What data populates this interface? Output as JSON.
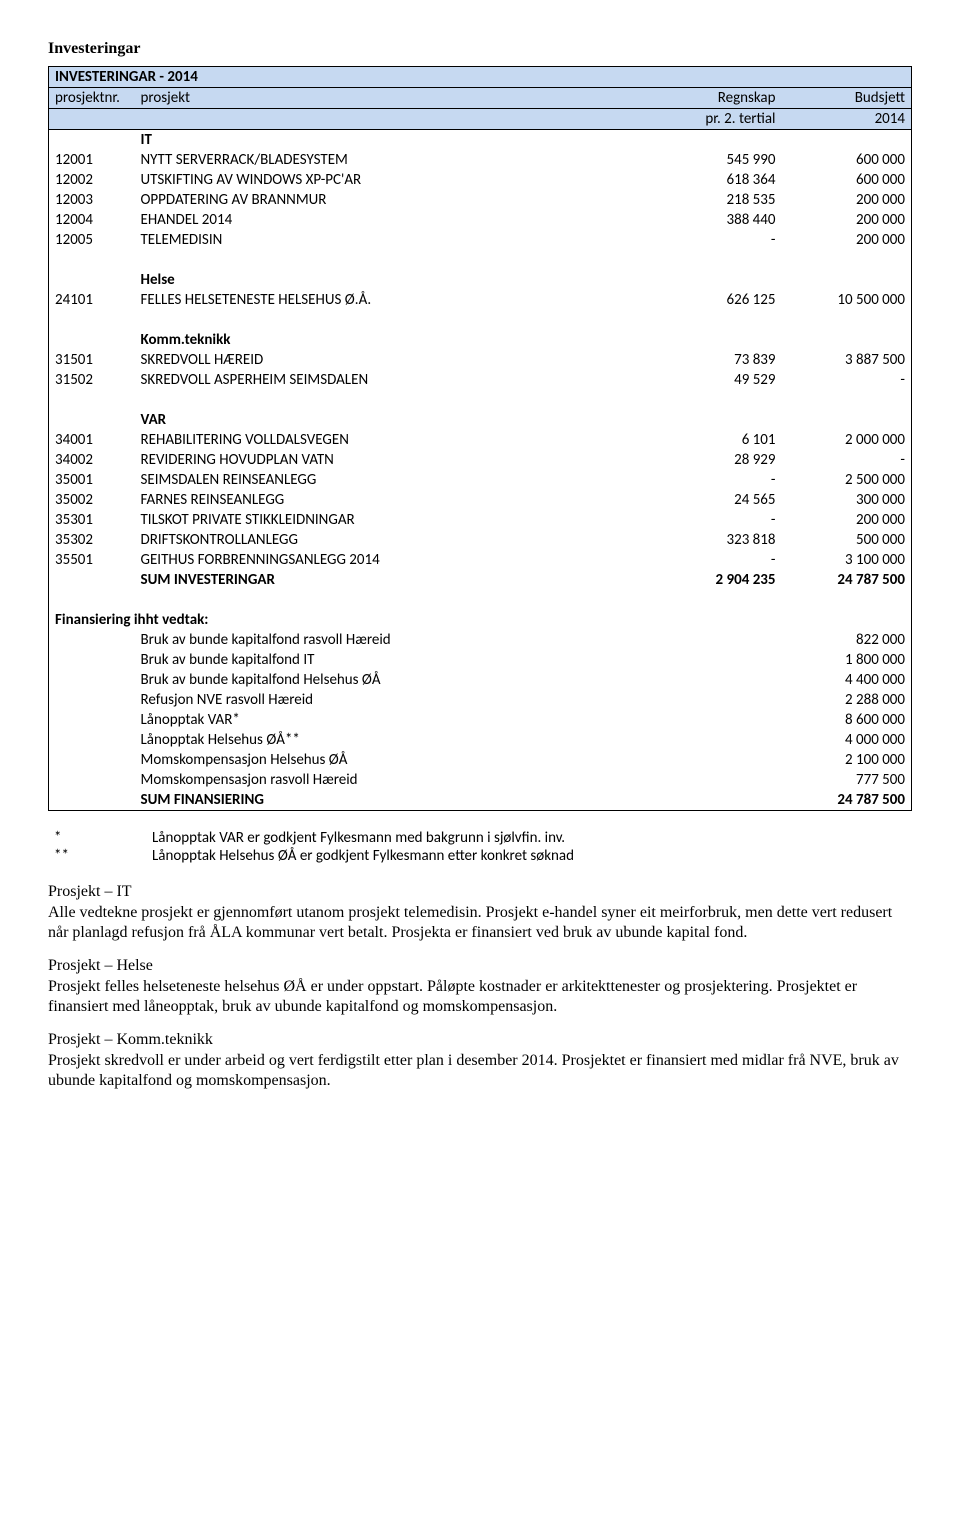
{
  "pageTitle": "Investeringar",
  "header": {
    "line1_left": "INVESTERINGAR - 2014",
    "line2_c1": "prosjektnr.",
    "line2_c2": "prosjekt",
    "line2_c3": "Regnskap",
    "line2_c4": "Budsjett",
    "line3_c3": "pr. 2. tertial",
    "line3_c4": "2014"
  },
  "groups": [
    {
      "heading": "IT",
      "rows": [
        {
          "nr": "12001",
          "name": "NYTT SERVERRACK/BLADESYSTEM",
          "v1": "545 990",
          "v2": "600 000"
        },
        {
          "nr": "12002",
          "name": "UTSKIFTING AV WINDOWS XP-PC'AR",
          "v1": "618 364",
          "v2": "600 000"
        },
        {
          "nr": "12003",
          "name": "OPPDATERING AV BRANNMUR",
          "v1": "218 535",
          "v2": "200 000"
        },
        {
          "nr": "12004",
          "name": "EHANDEL 2014",
          "v1": "388 440",
          "v2": "200 000"
        },
        {
          "nr": "12005",
          "name": "TELEMEDISIN",
          "v1": "-",
          "v2": "200 000"
        }
      ]
    },
    {
      "heading": "Helse",
      "rows": [
        {
          "nr": "24101",
          "name": "FELLES HELSETENESTE HELSEHUS Ø.Å.",
          "v1": "626 125",
          "v2": "10 500 000"
        }
      ]
    },
    {
      "heading": "Komm.teknikk",
      "rows": [
        {
          "nr": "31501",
          "name": "SKREDVOLL HÆREID",
          "v1": "73 839",
          "v2": "3 887 500"
        },
        {
          "nr": "31502",
          "name": "SKREDVOLL ASPERHEIM SEIMSDALEN",
          "v1": "49 529",
          "v2": "-"
        }
      ]
    },
    {
      "heading": "VAR",
      "rows": [
        {
          "nr": "34001",
          "name": "REHABILITERING VOLLDALSVEGEN",
          "v1": "6 101",
          "v2": "2 000 000"
        },
        {
          "nr": "34002",
          "name": "REVIDERING HOVUDPLAN VATN",
          "v1": "28 929",
          "v2": "-"
        },
        {
          "nr": "35001",
          "name": "SEIMSDALEN REINSEANLEGG",
          "v1": "-",
          "v2": "2 500 000"
        },
        {
          "nr": "35002",
          "name": "FARNES REINSEANLEGG",
          "v1": "24 565",
          "v2": "300 000"
        },
        {
          "nr": "35301",
          "name": "TILSKOT PRIVATE STIKKLEIDNINGAR",
          "v1": "-",
          "v2": "200 000"
        },
        {
          "nr": "35302",
          "name": "DRIFTSKONTROLLANLEGG",
          "v1": "323 818",
          "v2": "500 000"
        },
        {
          "nr": "35501",
          "name": "GEITHUS FORBRENNINGSANLEGG 2014",
          "v1": "-",
          "v2": "3 100 000"
        }
      ],
      "sum": {
        "label": "SUM INVESTERINGAR",
        "v1": "2 904 235",
        "v2": "24 787 500"
      }
    }
  ],
  "financing": {
    "heading": "Finansiering ihht vedtak:",
    "rows": [
      {
        "label": "Bruk av bunde kapitalfond rasvoll Hæreid",
        "value": "822 000"
      },
      {
        "label": "Bruk av bunde kapitalfond IT",
        "value": "1 800 000"
      },
      {
        "label": "Bruk av bunde kapitalfond Helsehus ØÅ",
        "value": "4 400 000"
      },
      {
        "label": "Refusjon NVE rasvoll Hæreid",
        "value": "2 288 000"
      },
      {
        "label": "Lånopptak VAR*",
        "value": "8 600 000"
      },
      {
        "label": "Lånopptak Helsehus ØÅ**",
        "value": "4 000 000"
      },
      {
        "label": "Momskompensasjon Helsehus ØÅ",
        "value": "2 100 000"
      },
      {
        "label": "Momskompensasjon rasvoll Hæreid",
        "value": "777 500"
      }
    ],
    "sum": {
      "label": "SUM FINANSIERING",
      "value": "24 787 500"
    }
  },
  "notes": [
    {
      "mark": "*",
      "text": "Lånopptak VAR er godkjent Fylkesmann med bakgrunn i sjølvfin. inv."
    },
    {
      "mark": "**",
      "text": "Lånopptak Helsehus ØÅ er godkjent Fylkesmann etter konkret søknad"
    }
  ],
  "paragraphs": [
    {
      "heading": "Prosjekt – IT",
      "text": "Alle vedtekne prosjekt er gjennomført utanom prosjekt telemedisin. Prosjekt e-handel syner eit meirforbruk, men dette vert redusert når planlagd refusjon frå ÅLA kommunar vert betalt. Prosjekta er finansiert ved bruk av ubunde kapital fond."
    },
    {
      "heading": "Prosjekt – Helse",
      "text": "Prosjekt felles helseteneste helsehus ØÅ er under oppstart. Påløpte kostnader er arkitekttenester og prosjektering. Prosjektet er finansiert med låneopptak, bruk av ubunde kapitalfond og momskompensasjon."
    },
    {
      "heading": "Prosjekt – Komm.teknikk",
      "text": "Prosjekt skredvoll er under arbeid og vert ferdigstilt etter plan i desember 2014. Prosjektet er finansiert med midlar frå NVE, bruk av ubunde kapitalfond og momskompensasjon."
    }
  ]
}
